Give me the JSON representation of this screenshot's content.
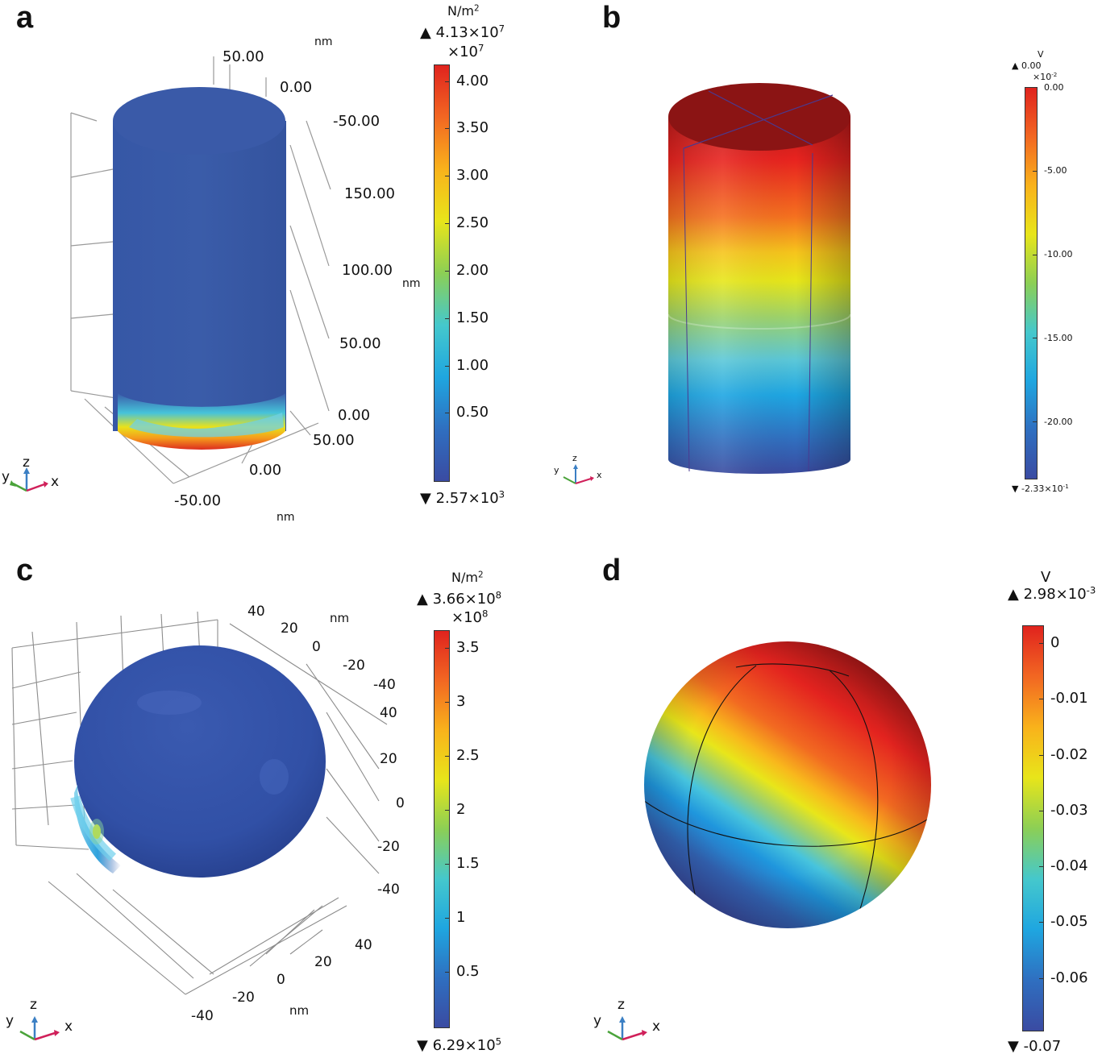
{
  "panels": {
    "a": {
      "letter": "a",
      "unit": "N/m",
      "unit_exp": "2",
      "max_label": "4.13×10",
      "max_exp": "7",
      "scale_label": "×10",
      "scale_exp": "7",
      "min_label": "2.57×10",
      "min_exp": "3",
      "colorbar_ticks": [
        "4.00",
        "3.50",
        "3.00",
        "2.50",
        "2.00",
        "1.50",
        "1.00",
        "0.50"
      ],
      "tick_fractions": [
        0.04,
        0.154,
        0.268,
        0.382,
        0.496,
        0.61,
        0.724,
        0.838
      ],
      "axis_unit": "nm",
      "axis_ticks": {
        "y_top_50": "50.00",
        "y_top_0": "0.00",
        "y_top_m50": "-50.00",
        "z_150": "150.00",
        "z_100": "100.00",
        "z_50": "50.00",
        "z_0": "0.00",
        "x_50": "50.00",
        "x_0": "0.00",
        "x_m50": "-50.00"
      },
      "triad": {
        "y": "y",
        "z": "z",
        "x": "x"
      }
    },
    "b": {
      "letter": "b",
      "unit": "V",
      "max_label": "0.00",
      "scale_label": "×10",
      "scale_exp": "-2",
      "min_label": "-2.33×10",
      "min_exp": "-1",
      "colorbar_ticks": [
        "0.00",
        "-5.00",
        "-10.00",
        "-15.00",
        "-20.00"
      ],
      "tick_fractions": [
        0.0,
        0.214,
        0.428,
        0.642,
        0.856
      ],
      "triad": {
        "y": "y",
        "z": "z",
        "x": "x"
      }
    },
    "c": {
      "letter": "c",
      "unit": "N/m",
      "unit_exp": "2",
      "max_label": "3.66×10",
      "max_exp": "8",
      "scale_label": "×10",
      "scale_exp": "8",
      "min_label": "6.29×10",
      "min_exp": "5",
      "colorbar_ticks": [
        "3.5",
        "3",
        "2.5",
        "2",
        "1.5",
        "1",
        "0.5"
      ],
      "tick_fractions": [
        0.044,
        0.18,
        0.317,
        0.453,
        0.589,
        0.725,
        0.861
      ],
      "axis_unit": "nm",
      "axis_ticks": {
        "t40": "40",
        "t20": "20",
        "t0": "0",
        "tm20": "-20",
        "tm40": "-40",
        "r40": "40",
        "r20": "20",
        "r0": "0",
        "rm20": "-20",
        "rm40": "-40",
        "b40": "40",
        "b20": "20",
        "b0": "0",
        "bm20": "-20",
        "bm40": "-40"
      },
      "triad": {
        "y": "y",
        "z": "z",
        "x": "x"
      }
    },
    "d": {
      "letter": "d",
      "unit": "V",
      "max_label": "2.98×10",
      "max_exp": "-3",
      "min_label": "-0.07",
      "colorbar_ticks": [
        "0",
        "-0.01",
        "-0.02",
        "-0.03",
        "-0.04",
        "-0.05",
        "-0.06"
      ],
      "tick_fractions": [
        0.044,
        0.182,
        0.32,
        0.458,
        0.596,
        0.734,
        0.872
      ],
      "triad": {
        "y": "y",
        "z": "z",
        "x": "x"
      }
    }
  },
  "colors": {
    "jet": [
      "#3a4ba2",
      "#2f6fc0",
      "#1fa6e0",
      "#45c8cc",
      "#8ccf55",
      "#e8e51a",
      "#f9b21b",
      "#f26722",
      "#e0231e"
    ],
    "blue_body": "#3d5ba7",
    "dark_red": "#8b1414"
  }
}
